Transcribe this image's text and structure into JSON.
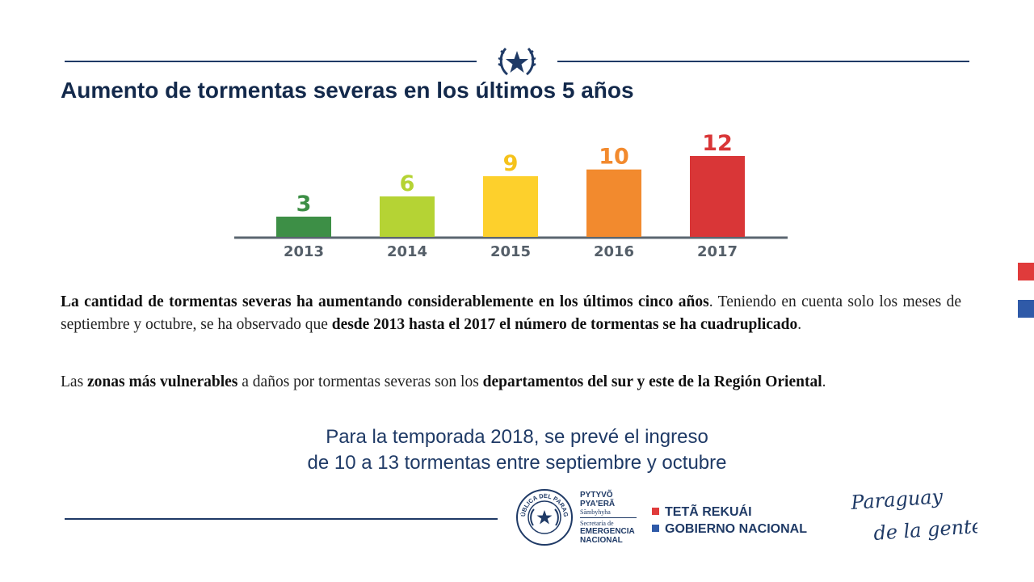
{
  "title": "Aumento de tormentas severas en los últimos 5 años",
  "chart_data": {
    "type": "bar",
    "categories": [
      "2013",
      "2014",
      "2015",
      "2016",
      "2017"
    ],
    "values": [
      3,
      6,
      9,
      10,
      12
    ],
    "colors": [
      "#3d8f46",
      "#b5d334",
      "#fdd02c",
      "#f28a2e",
      "#d93637"
    ],
    "value_label_colors": [
      "#3d8f46",
      "#b5d334",
      "#f5c21b",
      "#f28a2e",
      "#d93637"
    ],
    "axis_color": "#5b6670",
    "tick_label_color": "#555f69",
    "ylim": [
      0,
      12
    ],
    "grid": false,
    "data_labels": true
  },
  "paragraphs": {
    "p1_bold": "La cantidad de tormentas severas ha aumentando considerablemente en los últimos cinco años",
    "p1_t1": ". Teniendo en cuenta solo los meses de septiembre y octubre, se ha observado que ",
    "p1_bold2": "desde 2013 hasta el 2017 el número de tormentas se ha cuadruplicado",
    "p1_t2": ".",
    "p2_t1": "Las ",
    "p2_bold1": "zonas más vulnerables",
    "p2_t2": " a daños por tormentas severas son los ",
    "p2_bold2": "departamentos del sur y este de la Región Oriental",
    "p2_t3": "."
  },
  "forecast": {
    "line1": "Para la temporada 2018, se prevé el ingreso",
    "line2": "de 10 a 13 tormentas entre septiembre y octubre"
  },
  "footer": {
    "seal_text": "REPÚBLICA DEL PARAGUAY",
    "sen_l1": "PYTYVÕ",
    "sen_l2": "PYA'ERÃ",
    "sen_l3": "Sãmbyhyha",
    "sen_l4": "Secretaría de",
    "sen_l5": "EMERGENCIA",
    "sen_l6": "NACIONAL",
    "gov_l1": "TETÃ REKUÁI",
    "gov_l2": "GOBIERNO NACIONAL",
    "logo_l1": "Paraguay",
    "logo_l2": "de la gente"
  },
  "colors": {
    "navy": "#1f3a66",
    "red": "#e03b3b",
    "blue": "#2f5aa8"
  }
}
